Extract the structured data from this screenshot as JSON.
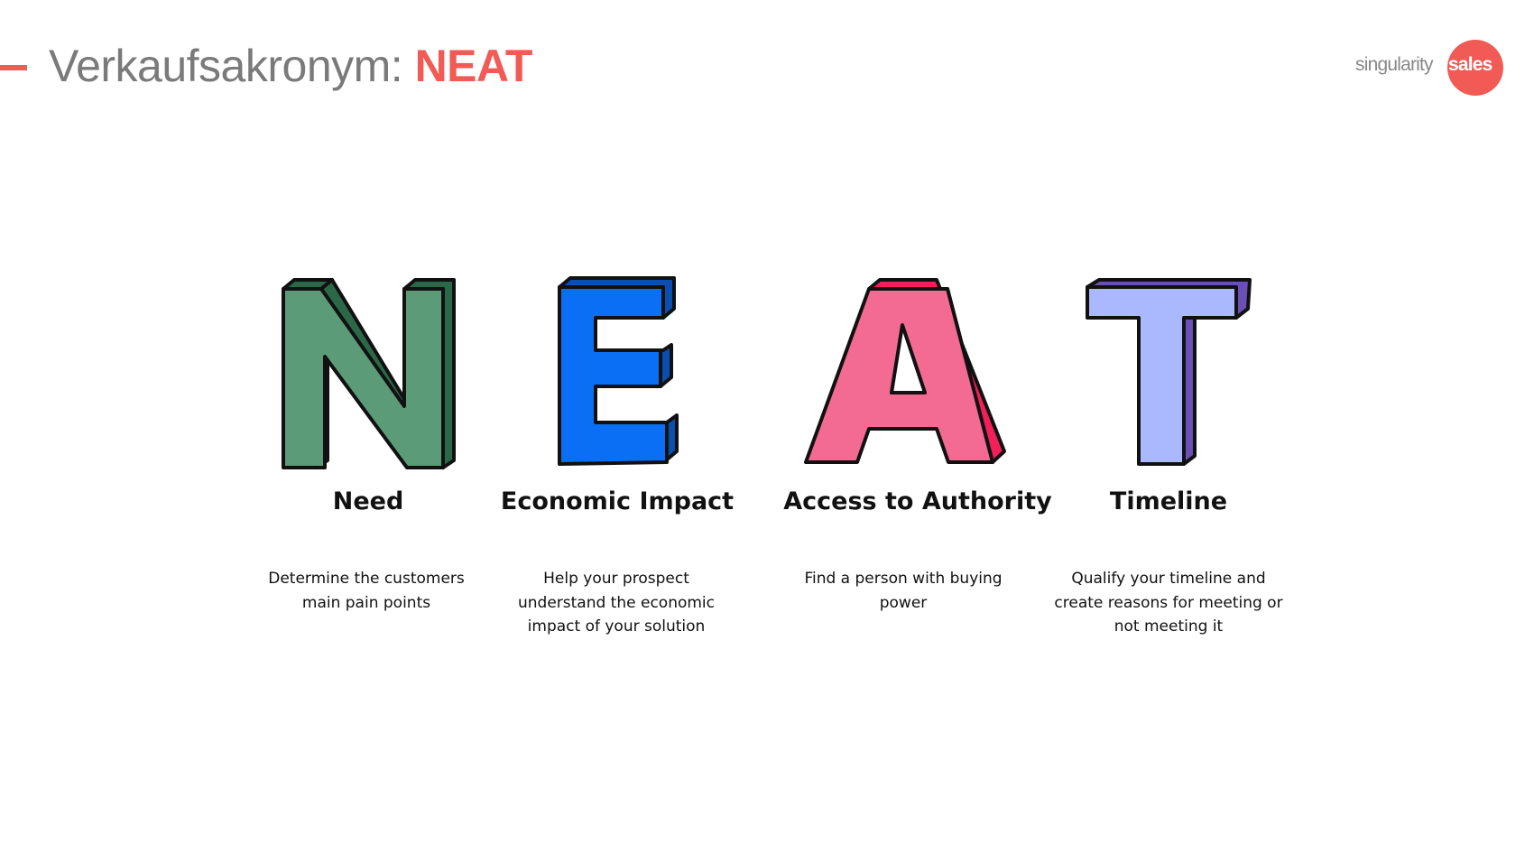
{
  "header": {
    "title_prefix": "Verkaufsakronym:",
    "title_acronym": "NEAT",
    "accent_color": "#f25a55"
  },
  "logo": {
    "part1": "singularity",
    "part2": "sales"
  },
  "items": [
    {
      "letter": "N",
      "color": "#5c9b78",
      "heading": "Need",
      "description": "Determine the customers main pain points"
    },
    {
      "letter": "E",
      "color": "#0a6ff5",
      "heading": "Economic Impact",
      "description": "Help your prospect understand the economic impact of your solution"
    },
    {
      "letter": "A",
      "color": "#f36a92",
      "heading": "Access to Authority",
      "description": "Find a person with buying power"
    },
    {
      "letter": "T",
      "color": "#aab8fd",
      "heading": "Timeline",
      "description": "Qualify your timeline and create reasons for meeting or not meeting it"
    }
  ]
}
